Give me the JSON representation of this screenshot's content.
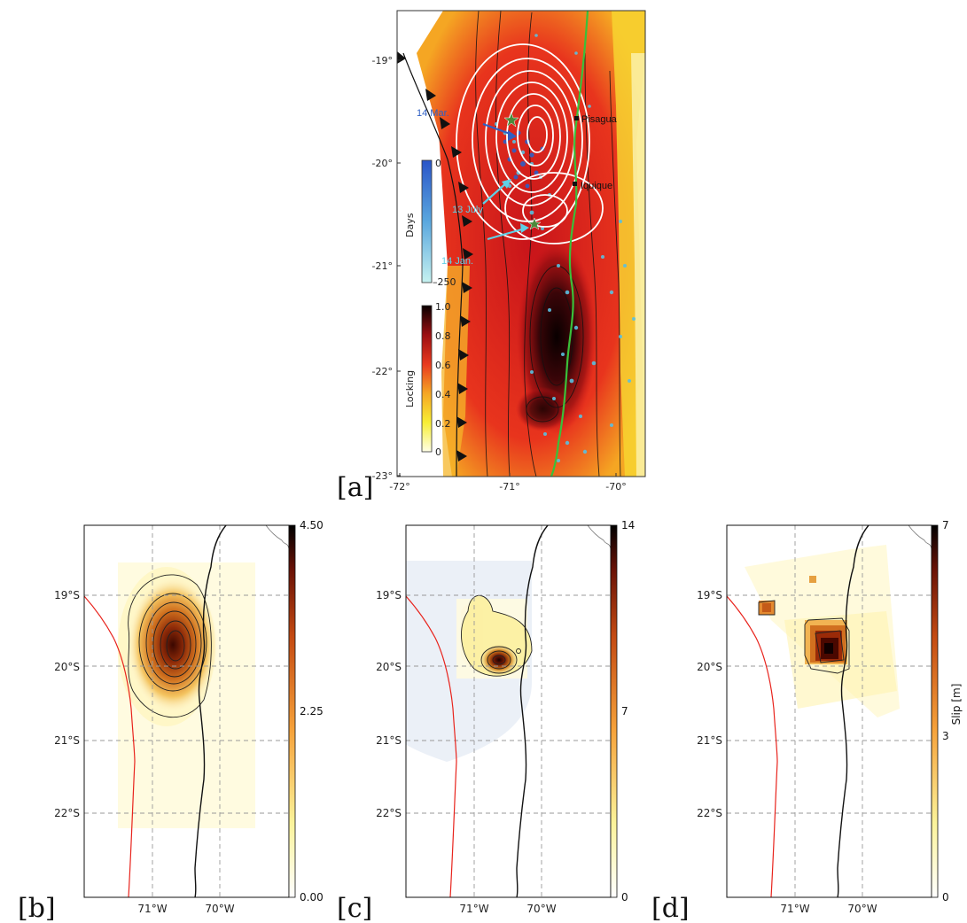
{
  "panel_a": {
    "tag": "[a]",
    "lat_ticks": [
      "-19°",
      "-20°",
      "-21°",
      "-22°",
      "-23°"
    ],
    "lon_ticks": [
      "-72°",
      "-71°",
      "-70°"
    ],
    "towns": {
      "pisagua": "Pisagua",
      "iquique": "Iquique"
    },
    "annotations": {
      "mar": "14 Mar.",
      "july": "13 July",
      "jan": "14 Jan."
    },
    "days_bar": {
      "label": "Days",
      "ticks": [
        "0",
        "–250"
      ]
    },
    "locking_bar": {
      "label": "Locking",
      "ticks": [
        "1.0",
        "0.8",
        "0.6",
        "0.4",
        "0.2",
        "0"
      ]
    }
  },
  "panel_b": {
    "tag": "[b]",
    "lat_ticks": [
      "19°S",
      "20°S",
      "21°S",
      "22°S"
    ],
    "lon_ticks": [
      "71°W",
      "70°W"
    ],
    "colorbar": {
      "ticks": [
        "4.50",
        "2.25",
        "0.00"
      ],
      "label": ""
    }
  },
  "panel_c": {
    "tag": "[c]",
    "lat_ticks": [
      "19°S",
      "20°S",
      "21°S",
      "22°S"
    ],
    "lon_ticks": [
      "71°W",
      "70°W"
    ],
    "colorbar": {
      "ticks": [
        "14",
        "7",
        "0"
      ],
      "label": ""
    }
  },
  "panel_d": {
    "tag": "[d]",
    "lat_ticks": [
      "19°S",
      "20°S",
      "21°S",
      "22°S"
    ],
    "lon_ticks": [
      "71°W",
      "70°W"
    ],
    "colorbar": {
      "ticks": [
        "7",
        "3",
        "0"
      ],
      "label": "Slip [m]"
    }
  },
  "colors": {
    "trench": "#e8231c",
    "coast": "#000000",
    "days_top": "#2a55c8",
    "days_bottom": "#bfeff0"
  }
}
